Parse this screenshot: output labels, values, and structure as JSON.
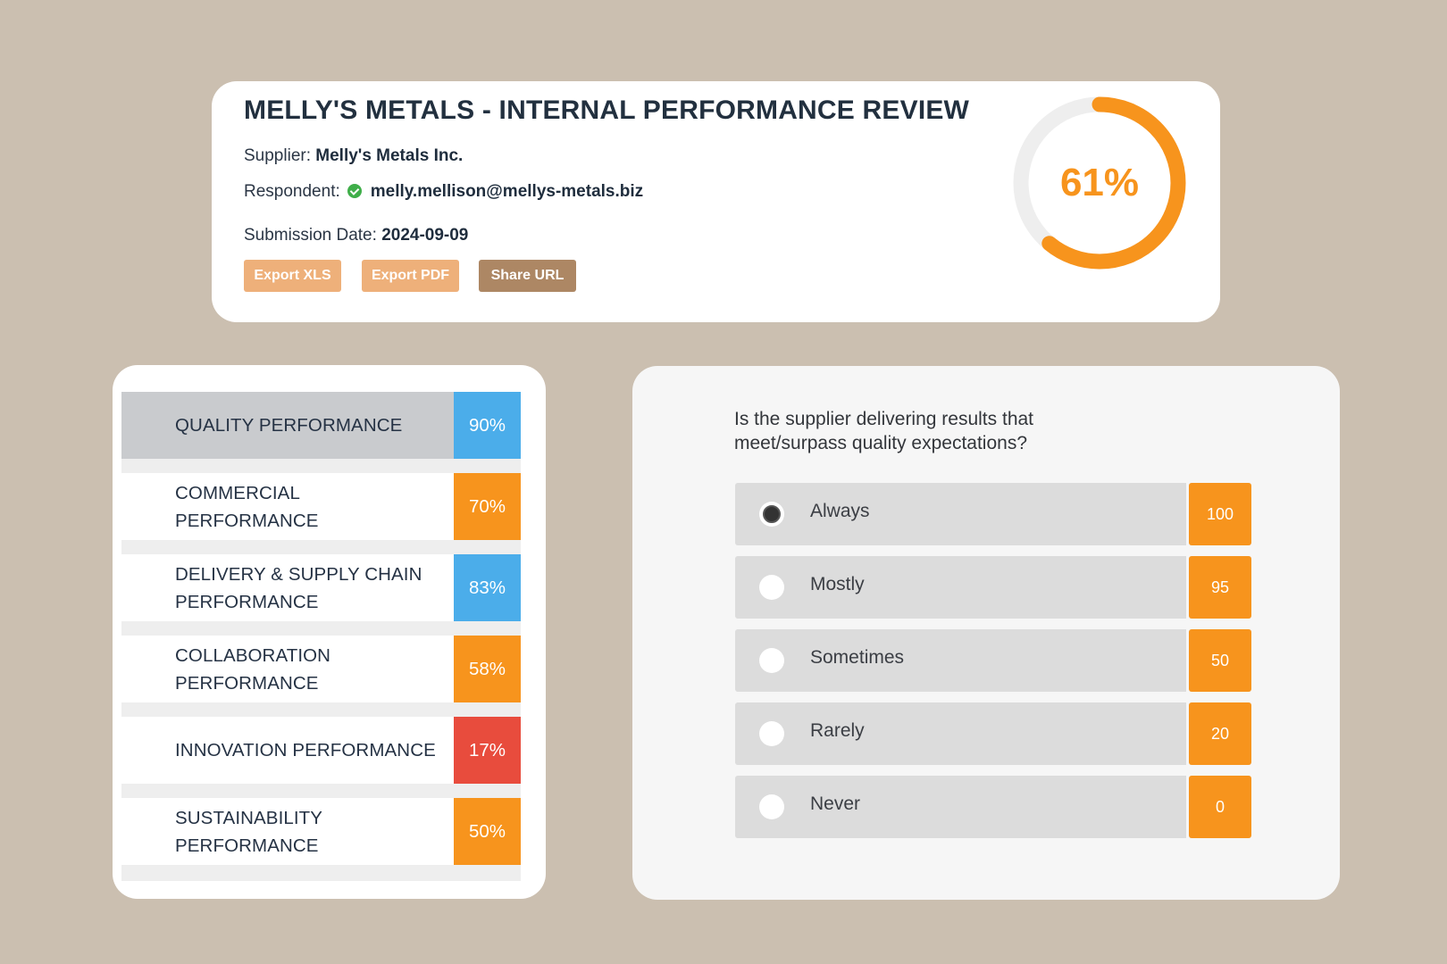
{
  "header": {
    "title": "MELLY'S METALS - INTERNAL PERFORMANCE REVIEW",
    "supplier_label": "Supplier:",
    "supplier_value": "Melly's Metals Inc.",
    "respondent_label": "Respondent:",
    "respondent_value": "melly.mellison@mellys-metals.biz",
    "respondent_status_icon": "check-circle-icon",
    "date_label": "Submission Date:",
    "date_value": "2024-09-09",
    "buttons": {
      "export_xls": "Export XLS",
      "export_pdf": "Export PDF",
      "share_url": "Share URL"
    },
    "overall_score": {
      "label": "61%",
      "fraction": 0.61,
      "color": "#f7941d",
      "track_color": "#eeeeee"
    }
  },
  "categories": [
    {
      "label": "QUALITY PERFORMANCE",
      "score": "90%",
      "color": "#4badea",
      "active": true
    },
    {
      "label": "COMMERCIAL PERFORMANCE",
      "score": "70%",
      "color": "#f7941d"
    },
    {
      "label": "DELIVERY & SUPPLY CHAIN PERFORMANCE",
      "score": "83%",
      "color": "#4badea"
    },
    {
      "label": "COLLABORATION PERFORMANCE",
      "score": "58%",
      "color": "#f7941d"
    },
    {
      "label": "INNOVATION PERFORMANCE",
      "score": "17%",
      "color": "#e84c3d"
    },
    {
      "label": "SUSTAINABILITY PERFORMANCE",
      "score": "50%",
      "color": "#f7941d"
    }
  ],
  "question": {
    "text": "Is the supplier delivering results that meet/surpass quality expectations?",
    "options": [
      {
        "label": "Always",
        "score": "100",
        "selected": true
      },
      {
        "label": "Mostly",
        "score": "95"
      },
      {
        "label": "Sometimes",
        "score": "50"
      },
      {
        "label": "Rarely",
        "score": "20"
      },
      {
        "label": "Never",
        "score": "0"
      }
    ]
  }
}
